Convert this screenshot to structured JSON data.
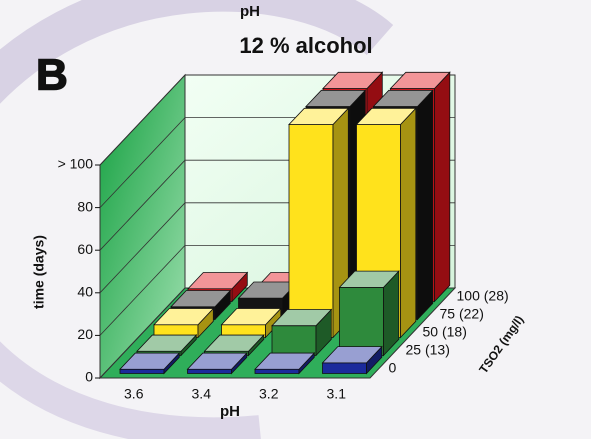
{
  "chart_data": {
    "type": "bar3d",
    "top_label": "pH",
    "panel_label": "B",
    "title": "12 % alcohol",
    "x_label": "pH",
    "y_label": "time (days)",
    "depth_label": "TSO2 (mg/l)",
    "categories": [
      "3.6",
      "3.4",
      "3.2",
      "3.1"
    ],
    "series": [
      {
        "name": "0",
        "color": "#1b2a9c",
        "values": [
          2,
          2,
          2,
          5
        ]
      },
      {
        "name": "25 (13)",
        "color": "#2e8a3c",
        "values": [
          2,
          2,
          14,
          32
        ]
      },
      {
        "name": "50 (18)",
        "color": "#ffe21c",
        "values": [
          6,
          6,
          100,
          100
        ]
      },
      {
        "name": "75 (22)",
        "color": "#141414",
        "values": [
          6,
          10,
          100,
          100
        ]
      },
      {
        "name": "100 (28)",
        "color": "#e3141b",
        "values": [
          6,
          6,
          100,
          100
        ]
      }
    ],
    "ylim": [
      0,
      100
    ],
    "yticks": [
      0,
      20,
      40,
      60,
      80,
      {
        "value": 100,
        "label": "> 100"
      }
    ],
    "grid": true
  }
}
